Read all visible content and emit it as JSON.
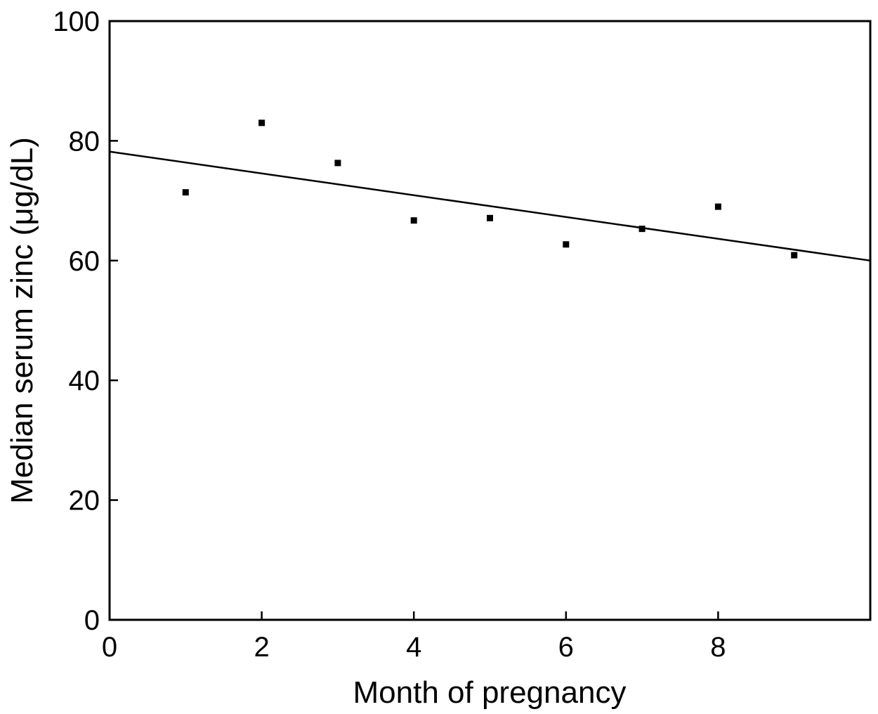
{
  "chart_data": {
    "type": "scatter",
    "title": "",
    "xlabel": "Month of pregnancy",
    "ylabel": "Median serum zinc (μg/dL)",
    "xlim": [
      0,
      10
    ],
    "ylim": [
      0,
      100
    ],
    "x_ticks": [
      0,
      2,
      4,
      6,
      8
    ],
    "y_ticks": [
      0,
      20,
      40,
      60,
      80,
      100
    ],
    "grid": false,
    "legend": "none",
    "series": [
      {
        "x": [
          1,
          2,
          3,
          4,
          5,
          6,
          7,
          8,
          9
        ],
        "y": [
          71.4,
          83.0,
          76.3,
          66.7,
          67.1,
          62.7,
          65.3,
          69.0,
          60.9
        ]
      }
    ],
    "fit_line": {
      "x": [
        0,
        10
      ],
      "y": [
        78.2,
        60.0
      ]
    },
    "colors": {
      "marker": "#000000",
      "line": "#000000",
      "axes": "#000000"
    }
  }
}
